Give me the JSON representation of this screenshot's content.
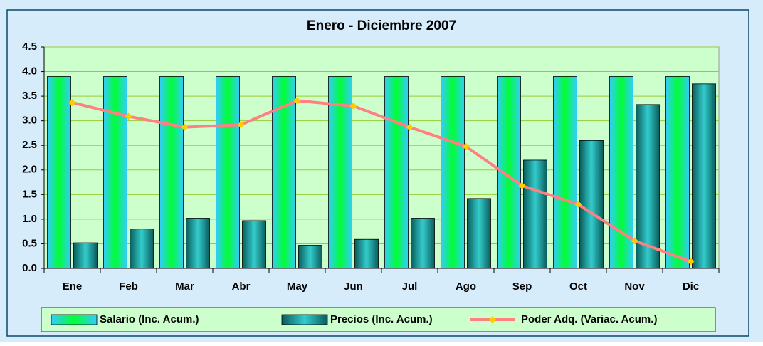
{
  "chart_data": {
    "type": "bar",
    "title": "Enero - Diciembre  2007",
    "categories": [
      "Ene",
      "Feb",
      "Mar",
      "Abr",
      "May",
      "Jun",
      "Jul",
      "Ago",
      "Sep",
      "Oct",
      "Nov",
      "Dic"
    ],
    "series": [
      {
        "name": "Salario (Inc. Acum.)",
        "color": "#33cc99",
        "values": [
          3.9,
          3.9,
          3.9,
          3.9,
          3.9,
          3.9,
          3.9,
          3.9,
          3.9,
          3.9,
          3.9,
          3.9
        ]
      },
      {
        "name": "Precios (Inc. Acum.)",
        "color": "#1a8c8c",
        "values": [
          0.52,
          0.8,
          1.02,
          0.97,
          0.47,
          0.59,
          1.02,
          1.42,
          2.2,
          2.6,
          3.33,
          3.75
        ]
      },
      {
        "name": "Poder Adq. (Variac. Acum.)",
        "color": "#ff8080",
        "type": "line",
        "marker_color": "#ffcc00",
        "values": [
          3.37,
          3.09,
          2.87,
          2.92,
          3.41,
          3.3,
          2.87,
          2.48,
          1.68,
          1.3,
          0.56,
          0.14
        ]
      }
    ],
    "ylim": [
      0,
      4.5
    ],
    "yticks": [
      {
        "value": 0,
        "label": "0.0"
      },
      0.5,
      {
        "value": 1,
        "label": "1.0"
      },
      1.5,
      {
        "value": 2,
        "label": "2.0"
      },
      2.5,
      {
        "value": 3,
        "label": "3.0"
      },
      3.5,
      {
        "value": 4,
        "label": "4.0"
      },
      4.5
    ],
    "grid": true,
    "legend": "bottom"
  }
}
